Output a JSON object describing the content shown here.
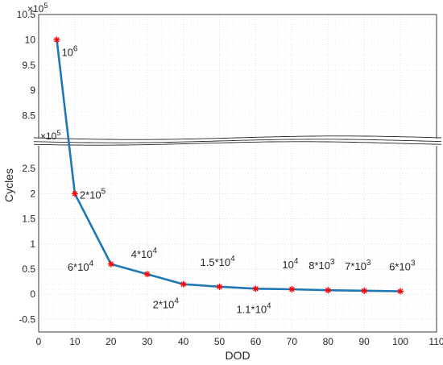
{
  "chart_data": {
    "type": "line",
    "xlabel": "DOD",
    "ylabel": "Cycles",
    "xlim": [
      0,
      110
    ],
    "xticks": [
      "0",
      "10",
      "20",
      "30",
      "40",
      "50",
      "60",
      "70",
      "80",
      "90",
      "100",
      "110"
    ],
    "grid": true,
    "upper_panel": {
      "ylim": [
        8.0,
        10.5
      ],
      "yticks": [
        "8.5",
        "9",
        "9.5",
        "10",
        "10.5"
      ],
      "multiplier": "×10",
      "multiplier_exp": "5"
    },
    "lower_panel": {
      "ylim": [
        -0.75,
        3.0
      ],
      "yticks": [
        "-0.5",
        "0",
        "0.5",
        "1",
        "1.5",
        "2",
        "2.5"
      ],
      "multiplier": "×10",
      "multiplier_exp": "5"
    },
    "series": [
      {
        "x": [
          5,
          10,
          20,
          30,
          40,
          50,
          60,
          70,
          80,
          90,
          100
        ],
        "y": [
          1000000,
          200000,
          60000,
          40000,
          20000,
          15000,
          11000,
          10000,
          8000,
          7000,
          6000
        ],
        "line_color": "#1f77b4",
        "marker_color": "#ff0000"
      }
    ],
    "annotations": [
      {
        "base": "10",
        "exp": "6"
      },
      {
        "base": "2*10",
        "exp": "5"
      },
      {
        "base": "6*10",
        "exp": "4"
      },
      {
        "base": "4*10",
        "exp": "4"
      },
      {
        "base": "2*10",
        "exp": "4"
      },
      {
        "base": "1.5*10",
        "exp": "4"
      },
      {
        "base": "1.1*10",
        "exp": "4"
      },
      {
        "base": "10",
        "exp": "4"
      },
      {
        "base": "8*10",
        "exp": "3"
      },
      {
        "base": "7*10",
        "exp": "3"
      },
      {
        "base": "6*10",
        "exp": "3"
      }
    ]
  }
}
